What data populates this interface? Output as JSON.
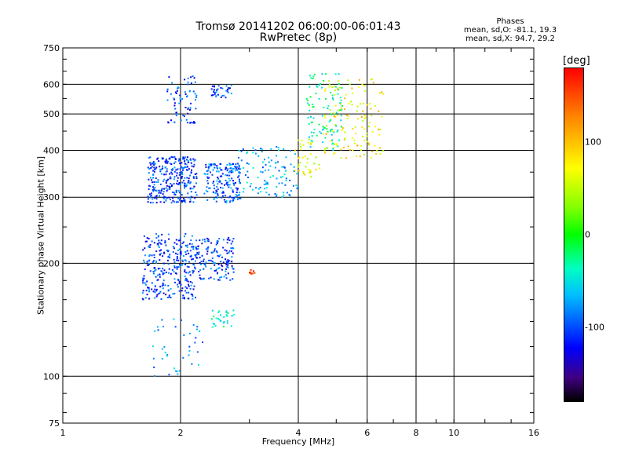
{
  "chart_data": {
    "type": "scatter",
    "title": "Tromsø 20141202 06:00:00-06:01:43",
    "subtitle": "RwPretec (8p)",
    "xlabel": "Frequency [MHz]",
    "ylabel": "Stationary phase Virtual Height [km]",
    "xscale": "log",
    "yscale": "log",
    "xlim": [
      1,
      16
    ],
    "ylim": [
      75,
      750
    ],
    "x_ticks": [
      1,
      2,
      4,
      6,
      8,
      10,
      16
    ],
    "x_tick_labels": [
      "1",
      "2",
      "4",
      "6",
      "8",
      "10",
      "16"
    ],
    "y_ticks": [
      75,
      100,
      200,
      300,
      400,
      500,
      600,
      750
    ],
    "y_tick_labels": [
      "75",
      "100",
      "200",
      "300",
      "400",
      "500",
      "600",
      "750"
    ],
    "grid": true,
    "phase_stats": {
      "heading": "Phases",
      "o_line": "mean, sd,O: -81.1, 19.3",
      "x_line": "mean, sd,X:  94.7, 29.2"
    },
    "colorbar": {
      "label": "[deg]",
      "range": [
        -180,
        180
      ],
      "tick_values": [
        100,
        0,
        -100
      ],
      "tick_labels": [
        "100",
        "0",
        "-100"
      ]
    },
    "echo_clusters": [
      {
        "f_range": [
          1.6,
          2.2
        ],
        "h_range": [
          160,
          240
        ],
        "phase": -110,
        "count": 300
      },
      {
        "f_range": [
          2.2,
          2.75
        ],
        "h_range": [
          180,
          235
        ],
        "phase": -110,
        "count": 140
      },
      {
        "f_range": [
          1.65,
          2.2
        ],
        "h_range": [
          290,
          385
        ],
        "phase": -110,
        "count": 300
      },
      {
        "f_range": [
          2.3,
          2.85
        ],
        "h_range": [
          290,
          370
        ],
        "phase": -100,
        "count": 180
      },
      {
        "f_range": [
          2.8,
          4.0
        ],
        "h_range": [
          300,
          410
        ],
        "phase": -75,
        "count": 110
      },
      {
        "f_range": [
          3.9,
          4.6
        ],
        "h_range": [
          340,
          430
        ],
        "phase": 80,
        "count": 40
      },
      {
        "f_range": [
          4.2,
          5.2
        ],
        "h_range": [
          400,
          640
        ],
        "phase": -40,
        "count": 100
      },
      {
        "f_range": [
          4.6,
          6.6
        ],
        "h_range": [
          380,
          620
        ],
        "phase": 90,
        "count": 130
      },
      {
        "f_range": [
          1.85,
          2.2
        ],
        "h_range": [
          470,
          640
        ],
        "phase": -110,
        "count": 70
      },
      {
        "f_range": [
          2.4,
          2.7
        ],
        "h_range": [
          550,
          600
        ],
        "phase": -110,
        "count": 35
      },
      {
        "f_range": [
          2.4,
          2.75
        ],
        "h_range": [
          135,
          150
        ],
        "phase": -40,
        "count": 30
      },
      {
        "f_range": [
          1.7,
          2.3
        ],
        "h_range": [
          100,
          145
        ],
        "phase": -80,
        "count": 40
      },
      {
        "f_range": [
          3.0,
          3.1
        ],
        "h_range": [
          187,
          192
        ],
        "phase": 150,
        "count": 10
      }
    ]
  }
}
